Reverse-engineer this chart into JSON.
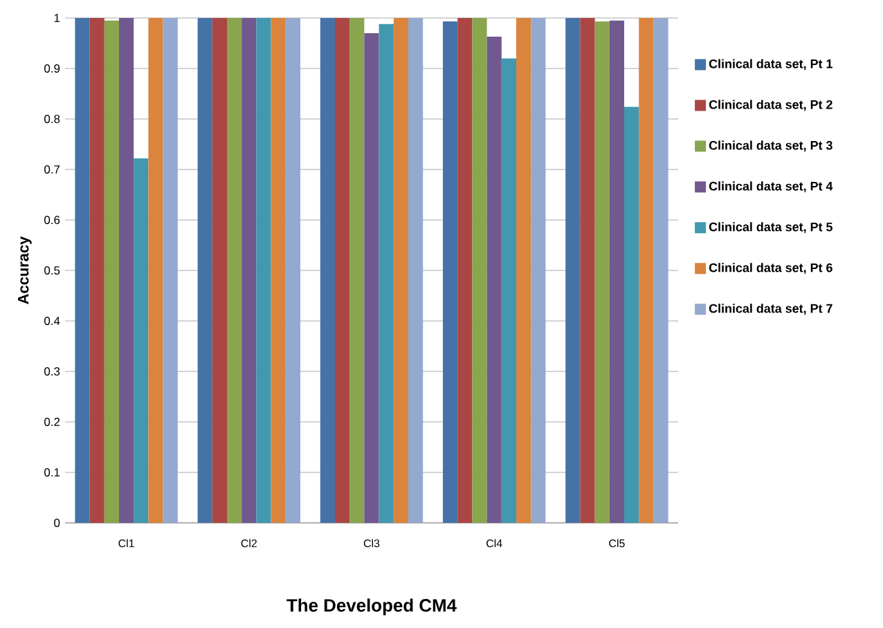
{
  "chart_data": {
    "type": "bar",
    "xlabel": "The Developed CM4",
    "ylabel": "Accuracy",
    "categories": [
      "Cl1",
      "Cl2",
      "Cl3",
      "Cl4",
      "Cl5"
    ],
    "series": [
      {
        "name": "Clinical data set, Pt 1",
        "color": "#4572a7",
        "values": [
          1,
          1,
          1,
          0.993,
          1
        ]
      },
      {
        "name": "Clinical data set, Pt 2",
        "color": "#aa4643",
        "values": [
          1,
          1,
          1,
          1,
          1
        ]
      },
      {
        "name": "Clinical data set, Pt 3",
        "color": "#89a54e",
        "values": [
          0.995,
          1,
          1,
          1,
          0.993
        ]
      },
      {
        "name": "Clinical data set, Pt 4",
        "color": "#71588f",
        "values": [
          1,
          1,
          0.97,
          0.963,
          0.995
        ]
      },
      {
        "name": "Clinical data set, Pt 5",
        "color": "#4198af",
        "values": [
          0.722,
          1,
          0.988,
          0.92,
          0.824
        ]
      },
      {
        "name": "Clinical data set, Pt 6",
        "color": "#db843d",
        "values": [
          1,
          1,
          1,
          1,
          1
        ]
      },
      {
        "name": "Clinical data set, Pt 7",
        "color": "#93a9cf",
        "values": [
          1,
          1,
          1,
          1,
          1
        ]
      }
    ],
    "ylim": [
      0,
      1
    ],
    "yticks": [
      0,
      0.1,
      0.2,
      0.3,
      0.4,
      0.5,
      0.6,
      0.7,
      0.8,
      0.9,
      1
    ],
    "grid": "y",
    "legend": "right"
  }
}
